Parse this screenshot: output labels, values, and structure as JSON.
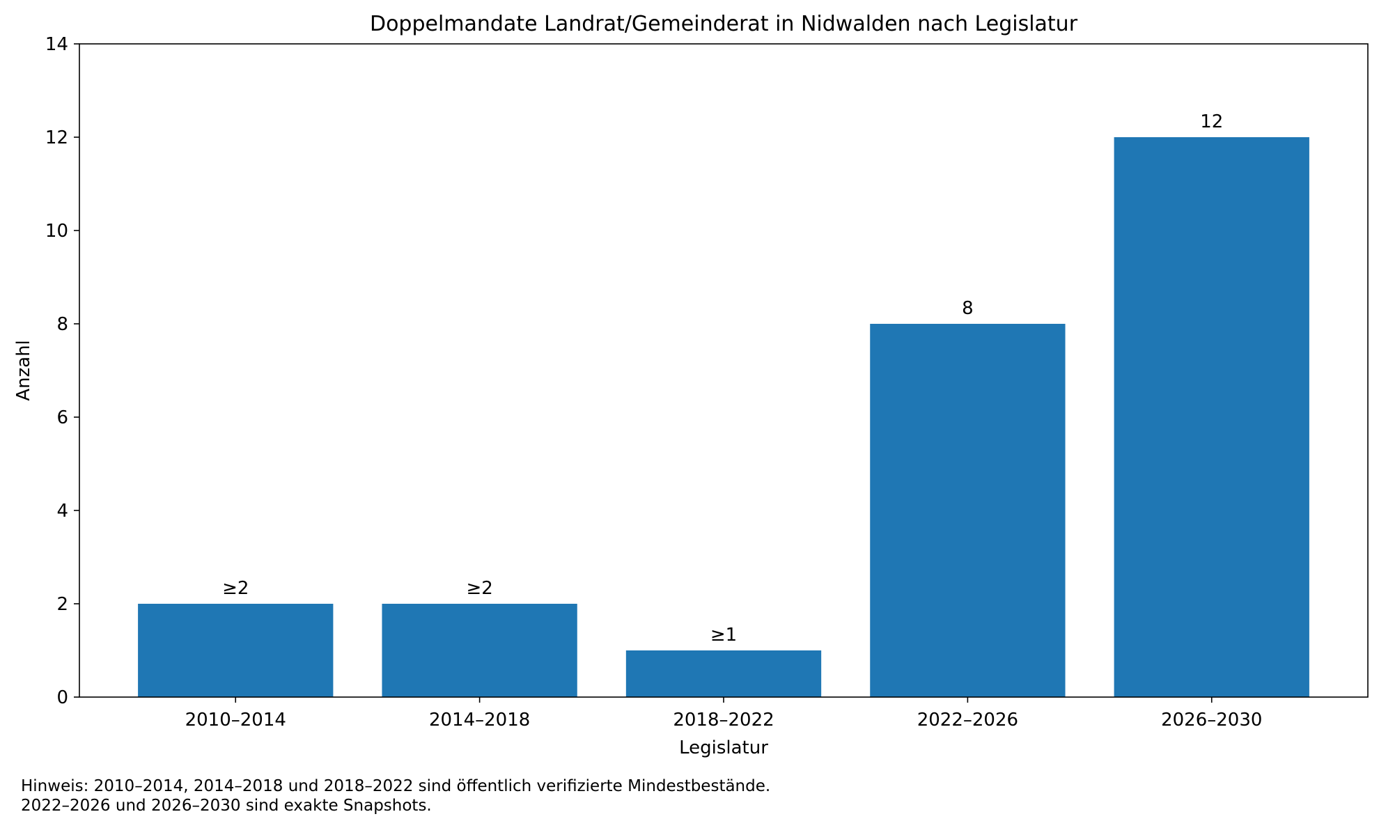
{
  "chart_data": {
    "type": "bar",
    "title": "Doppelmandate Landrat/Gemeinderat in Nidwalden nach Legislatur",
    "xlabel": "Legislatur",
    "ylabel": "Anzahl",
    "categories": [
      "2010–2014",
      "2014–2018",
      "2018–2022",
      "2022–2026",
      "2026–2030"
    ],
    "values": [
      2,
      2,
      1,
      8,
      12
    ],
    "data_labels": [
      "≥2",
      "≥2",
      "≥1",
      "8",
      "12"
    ],
    "ylim": [
      0,
      14
    ],
    "yticks": [
      "0",
      "2",
      "4",
      "6",
      "8",
      "10",
      "12",
      "14"
    ],
    "bar_color": "#1f77b4",
    "grid": false,
    "legend": "none"
  },
  "footnote": {
    "line1": "Hinweis: 2010–2014, 2014–2018 und 2018–2022 sind öffentlich verifizierte Mindestbestände.",
    "line2": "2022–2026 und 2026–2030 sind exakte Snapshots."
  }
}
